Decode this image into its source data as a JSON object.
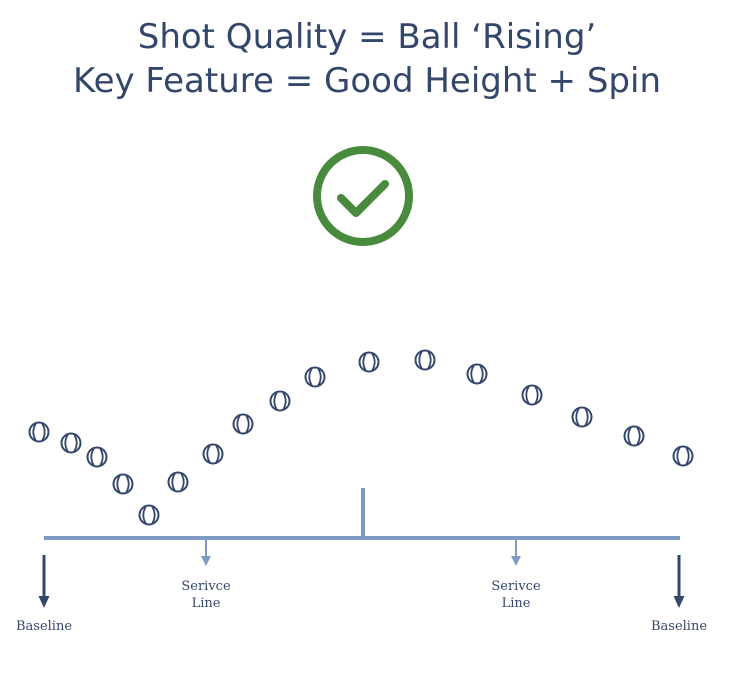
{
  "title": {
    "line1": "Shot Quality = Ball ‘Rising’",
    "line2": "Key Feature = Good Height + Spin"
  },
  "icons": {
    "check": "checkmark-circle-icon",
    "ball": "tennis-ball-icon",
    "arrow": "arrow-down-icon"
  },
  "colors": {
    "title": "#34476b",
    "check": "#4a8a3e",
    "court": "#7f9ac3",
    "ball": "#34476b",
    "baseline_arrow": "#34476b"
  },
  "court": {
    "left_baseline": "Baseline",
    "right_baseline": "Baseline",
    "left_service": {
      "line1": "Serivce",
      "line2": "Line"
    },
    "right_service": {
      "line1": "Serivce",
      "line2": "Line"
    }
  }
}
